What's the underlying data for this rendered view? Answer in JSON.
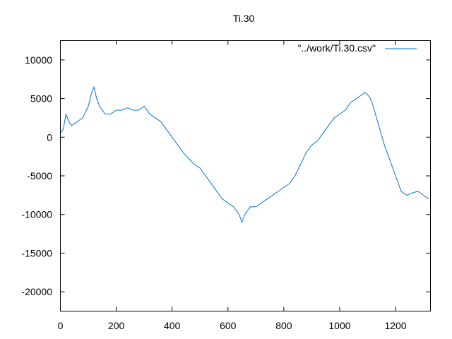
{
  "chart_data": {
    "type": "line",
    "title": "Ti.30",
    "xlabel": "",
    "ylabel": "",
    "xlim": [
      0,
      1325
    ],
    "ylim": [
      -22500,
      12500
    ],
    "x_ticks": [
      0,
      200,
      400,
      600,
      800,
      1000,
      1200
    ],
    "y_ticks": [
      10000,
      5000,
      0,
      -5000,
      -10000,
      -15000,
      -20000
    ],
    "grid": false,
    "legend_position": "top-right",
    "series": [
      {
        "name": "\"../work/Ti.30.csv\"",
        "color": "#0072d6",
        "x": [
          0,
          10,
          20,
          30,
          40,
          60,
          80,
          100,
          110,
          120,
          130,
          140,
          160,
          180,
          200,
          220,
          240,
          260,
          280,
          300,
          320,
          340,
          360,
          380,
          400,
          420,
          440,
          460,
          480,
          500,
          520,
          540,
          560,
          580,
          600,
          620,
          640,
          650,
          660,
          680,
          700,
          720,
          740,
          760,
          780,
          800,
          820,
          840,
          860,
          880,
          900,
          920,
          940,
          960,
          980,
          1000,
          1020,
          1040,
          1060,
          1080,
          1090,
          1100,
          1110,
          1120,
          1140,
          1160,
          1180,
          1200,
          1220,
          1240,
          1260,
          1280,
          1300,
          1320
        ],
        "y": [
          500,
          1000,
          3000,
          2000,
          1500,
          2000,
          2500,
          4000,
          5500,
          6500,
          5000,
          4000,
          3000,
          3000,
          3500,
          3500,
          3800,
          3500,
          3500,
          4000,
          3000,
          2500,
          2000,
          1000,
          0,
          -1000,
          -2000,
          -2800,
          -3500,
          -4000,
          -5000,
          -6000,
          -7000,
          -8000,
          -8500,
          -9000,
          -10000,
          -11000,
          -10000,
          -9000,
          -9000,
          -8500,
          -8000,
          -7500,
          -7000,
          -6500,
          -6000,
          -5000,
          -3500,
          -2000,
          -1000,
          -500,
          500,
          1500,
          2500,
          3000,
          3500,
          4500,
          5000,
          5500,
          5800,
          5500,
          5000,
          4000,
          1500,
          -1000,
          -3000,
          -5000,
          -7000,
          -7500,
          -7200,
          -7000,
          -7500,
          -8000
        ]
      }
    ]
  }
}
